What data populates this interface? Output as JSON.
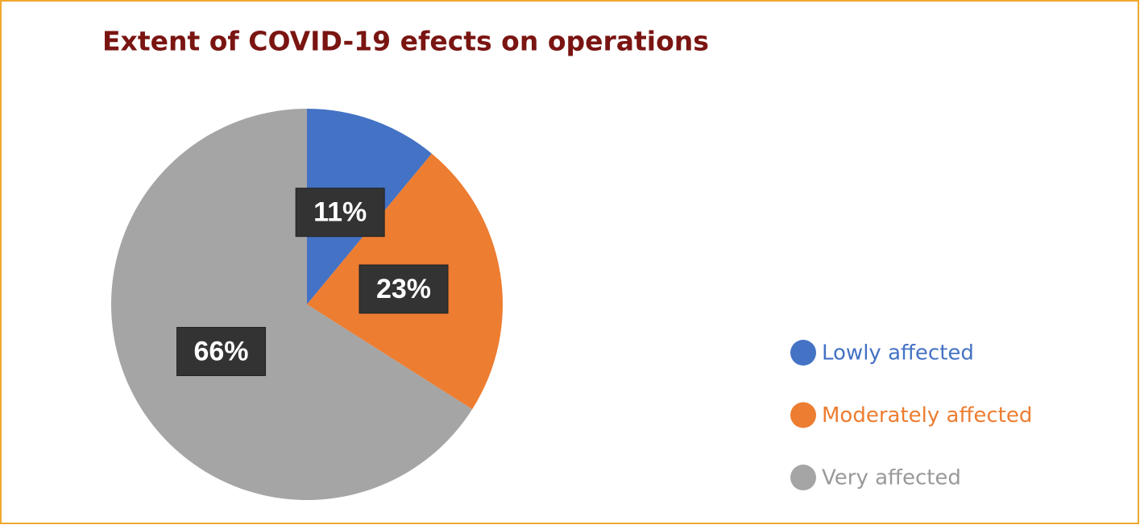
{
  "chart_data": {
    "type": "pie",
    "title": "Extent of COVID-19 efects on operations",
    "categories": [
      "Lowly affected",
      "Moderately affected",
      "Very affected"
    ],
    "values": [
      11,
      23,
      66
    ],
    "value_labels": [
      "11%",
      "23%",
      "66%"
    ],
    "colors": [
      "#4472c4",
      "#ed7d31",
      "#a5a5a5"
    ],
    "legend": "right"
  }
}
